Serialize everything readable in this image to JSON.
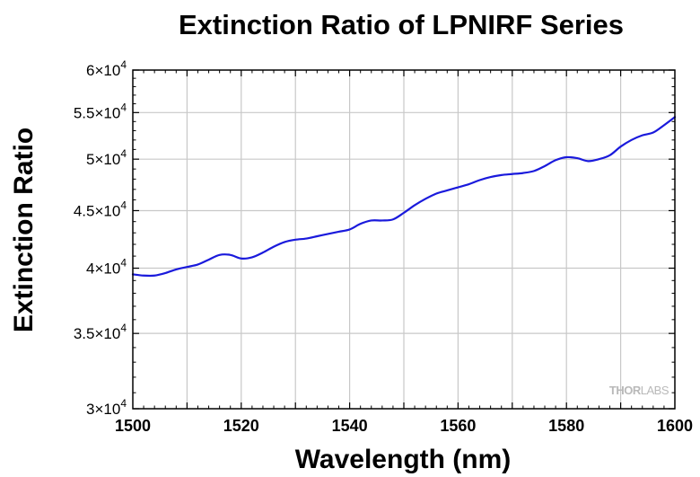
{
  "chart_data": {
    "type": "line",
    "title": "Extinction Ratio of LPNIRF Series",
    "xlabel": "Wavelength (nm)",
    "ylabel": "Extinction Ratio",
    "xlim": [
      1500,
      1600
    ],
    "ylim": [
      30000,
      60000
    ],
    "yscale": "log",
    "grid": true,
    "x_ticks": [
      1500,
      1520,
      1540,
      1560,
      1580,
      1600
    ],
    "x_tick_labels": [
      "1500",
      "1520",
      "1540",
      "1560",
      "1580",
      "1600"
    ],
    "y_ticks": [
      30000,
      35000,
      40000,
      45000,
      50000,
      55000,
      60000
    ],
    "y_tick_labels": [
      {
        "mant": "3",
        "exp": "4"
      },
      {
        "mant": "3.5",
        "exp": "4"
      },
      {
        "mant": "4",
        "exp": "4"
      },
      {
        "mant": "4.5",
        "exp": "4"
      },
      {
        "mant": "5",
        "exp": "4"
      },
      {
        "mant": "5.5",
        "exp": "4"
      },
      {
        "mant": "6",
        "exp": "4"
      }
    ],
    "series": [
      {
        "color": "#1a1adc",
        "x": [
          1500,
          1502,
          1504,
          1506,
          1508,
          1510,
          1512,
          1514,
          1516,
          1518,
          1520,
          1522,
          1524,
          1526,
          1528,
          1530,
          1532,
          1534,
          1536,
          1538,
          1540,
          1542,
          1544,
          1546,
          1548,
          1550,
          1552,
          1554,
          1556,
          1558,
          1560,
          1562,
          1564,
          1566,
          1568,
          1570,
          1572,
          1574,
          1576,
          1578,
          1580,
          1582,
          1584,
          1586,
          1588,
          1590,
          1592,
          1594,
          1596,
          1598,
          1600
        ],
        "y": [
          39500,
          39400,
          39400,
          39600,
          39900,
          40100,
          40300,
          40700,
          41100,
          41100,
          40800,
          40900,
          41300,
          41800,
          42200,
          42400,
          42500,
          42700,
          42900,
          43100,
          43300,
          43800,
          44100,
          44100,
          44200,
          44800,
          45500,
          46100,
          46600,
          46900,
          47200,
          47500,
          47900,
          48200,
          48400,
          48500,
          48600,
          48800,
          49300,
          49900,
          50200,
          50100,
          49800,
          50000,
          50400,
          51300,
          52000,
          52500,
          52800,
          53600,
          54500
        ]
      }
    ]
  },
  "watermark": {
    "part1": "THOR",
    "part2": "LABS"
  }
}
